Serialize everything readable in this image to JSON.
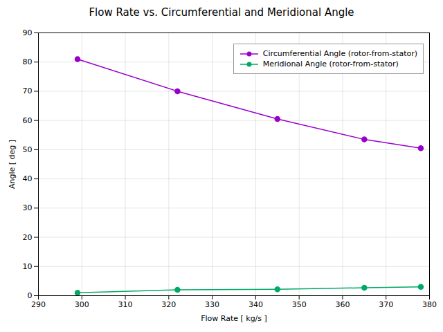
{
  "chart_data": {
    "type": "line",
    "title": "Flow Rate vs. Circumferential and Meridional Angle",
    "xlabel": "Flow Rate [ kg/s ]",
    "ylabel": "Angle [ deg ]",
    "x": [
      299,
      322,
      345,
      365,
      378
    ],
    "series": [
      {
        "name": "Circumferential Angle (rotor-from-stator)",
        "color": "#9900cc",
        "values": [
          81,
          70,
          60.5,
          53.5,
          50.5
        ]
      },
      {
        "name": "Meridional Angle (rotor-from-stator)",
        "color": "#00aa66",
        "values": [
          1.0,
          2.0,
          2.2,
          2.7,
          3.0
        ]
      }
    ],
    "xlim": [
      290,
      380
    ],
    "ylim": [
      0,
      90
    ],
    "xticks": [
      290,
      300,
      310,
      320,
      330,
      340,
      350,
      360,
      370,
      380
    ],
    "yticks": [
      0,
      10,
      20,
      30,
      40,
      50,
      60,
      70,
      80,
      90
    ],
    "marker": "circle",
    "grid": true,
    "legend": "upper right"
  }
}
